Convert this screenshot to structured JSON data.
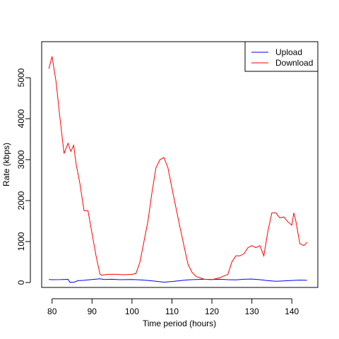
{
  "chart_data": {
    "type": "line",
    "title": "",
    "xlabel": "Time period (hours)",
    "ylabel": "Rate (kbps)",
    "xlim": [
      77.4,
      146.5
    ],
    "ylim": [
      -120,
      5880
    ],
    "xticks": [
      80,
      90,
      100,
      110,
      120,
      130,
      140
    ],
    "yticks": [
      0,
      1000,
      2000,
      3000,
      4000,
      5000
    ],
    "grid": false,
    "legend_position": "top-right",
    "series": [
      {
        "name": "Upload",
        "color": "#0000ff",
        "x": [
          79.2,
          80,
          82,
          84,
          84.5,
          85.5,
          86.5,
          88,
          90,
          92,
          93,
          95,
          97,
          100,
          102,
          104,
          106,
          108,
          110,
          112,
          114,
          116,
          118,
          120,
          122,
          124,
          126,
          128,
          130,
          132,
          134,
          136,
          138,
          140,
          142,
          143.8
        ],
        "y": [
          75,
          70,
          72,
          78,
          5,
          10,
          45,
          55,
          75,
          90,
          75,
          80,
          70,
          75,
          65,
          50,
          30,
          10,
          25,
          45,
          65,
          75,
          80,
          75,
          80,
          70,
          65,
          80,
          85,
          70,
          45,
          30,
          40,
          50,
          60,
          55
        ]
      },
      {
        "name": "Download",
        "color": "#ff0000",
        "x": [
          79.2,
          80,
          81,
          82,
          83,
          84,
          84.7,
          85.4,
          86,
          87,
          88,
          89,
          90,
          91,
          92,
          92.4,
          94,
          96,
          98,
          100,
          101,
          102,
          104,
          105,
          106,
          107,
          108,
          109,
          110,
          112,
          114,
          115,
          116,
          118,
          120,
          122,
          124,
          125,
          126,
          127,
          128,
          129,
          130,
          131,
          132,
          133,
          134,
          135,
          136,
          137,
          138,
          139,
          140,
          140.5,
          141,
          142,
          143,
          143.8
        ],
        "y": [
          5220,
          5520,
          4900,
          4000,
          3150,
          3400,
          3200,
          3350,
          2900,
          2400,
          1750,
          1750,
          1200,
          650,
          200,
          180,
          200,
          200,
          190,
          200,
          220,
          500,
          1500,
          2200,
          2800,
          3000,
          3050,
          2800,
          2300,
          1350,
          450,
          250,
          150,
          80,
          70,
          120,
          200,
          500,
          650,
          650,
          700,
          850,
          900,
          850,
          900,
          650,
          1250,
          1700,
          1700,
          1580,
          1600,
          1480,
          1400,
          1700,
          1500,
          950,
          900,
          980
        ]
      }
    ]
  }
}
